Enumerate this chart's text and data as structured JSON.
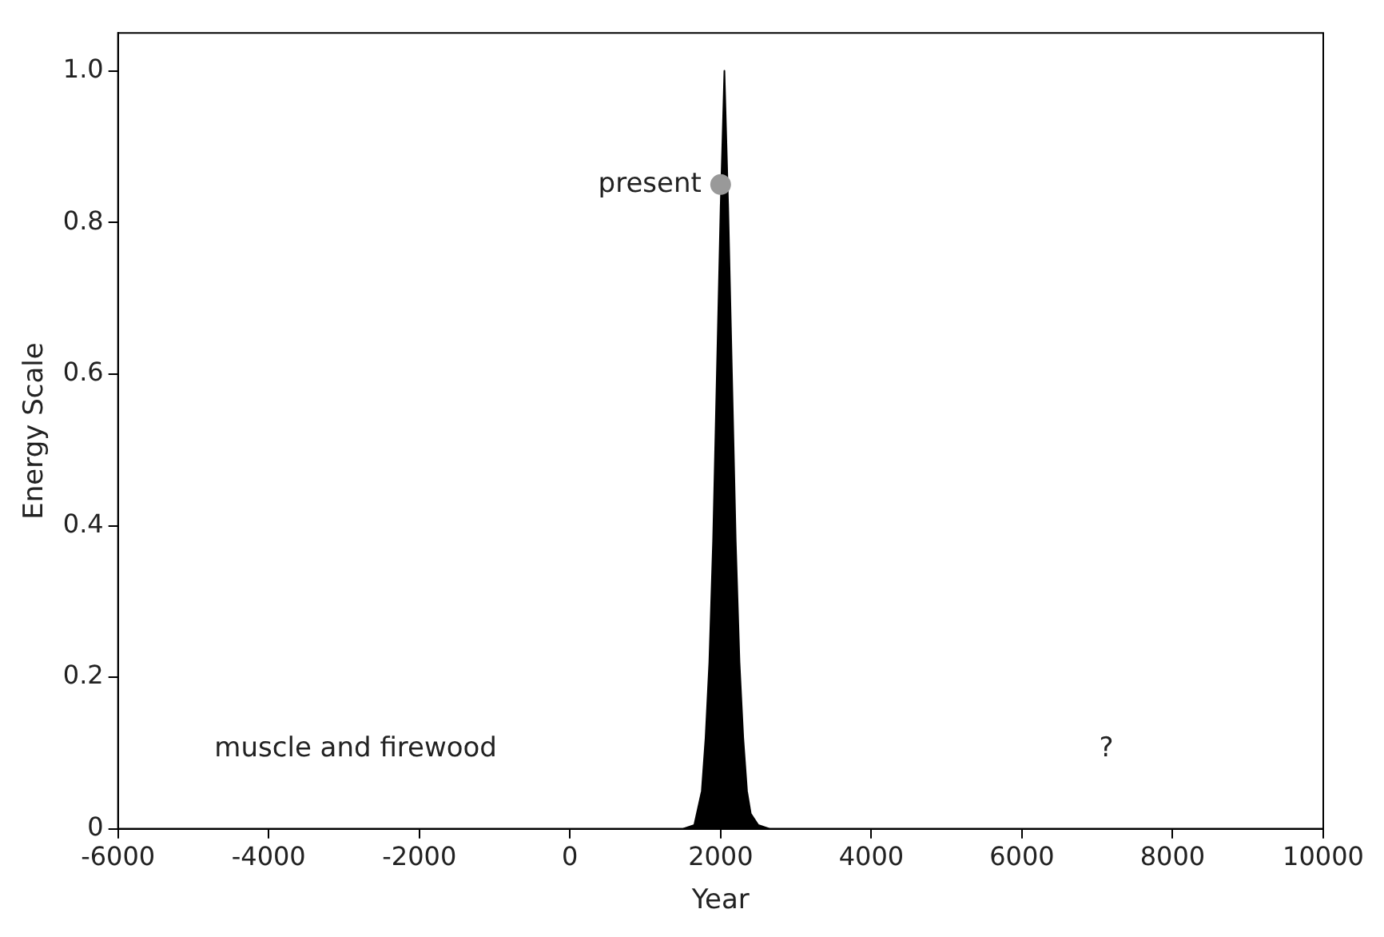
{
  "chart_data": {
    "type": "area",
    "xlabel": "Year",
    "ylabel": "Energy Scale",
    "xlim": [
      -6000,
      10000
    ],
    "xticks": [
      -6000,
      -4000,
      -2000,
      0,
      2000,
      4000,
      6000,
      8000,
      10000
    ],
    "ylim": [
      0,
      1.05
    ],
    "yticks": [
      0,
      0.2,
      0.4,
      0.6,
      0.8,
      {
        "value": 1,
        "label": "1.0"
      }
    ],
    "grid": false,
    "legend": false,
    "series": [
      {
        "color": "#000000",
        "x": [
          -6000,
          1500,
          1650,
          1750,
          1800,
          1850,
          1900,
          1950,
          2000,
          2050,
          2100,
          2150,
          2200,
          2250,
          2300,
          2350,
          2400,
          2500,
          2650,
          10000
        ],
        "values": [
          0,
          0,
          0.005,
          0.05,
          0.12,
          0.22,
          0.38,
          0.6,
          0.82,
          1.0,
          0.82,
          0.6,
          0.38,
          0.22,
          0.12,
          0.05,
          0.02,
          0.005,
          0,
          0
        ]
      },
      {
        "type": "scatter",
        "color": "#999999",
        "x": [
          2000
        ],
        "values": [
          0.85
        ],
        "marker": "circle"
      }
    ],
    "annotations": [
      "present",
      "muscle and firewood",
      "?"
    ]
  }
}
